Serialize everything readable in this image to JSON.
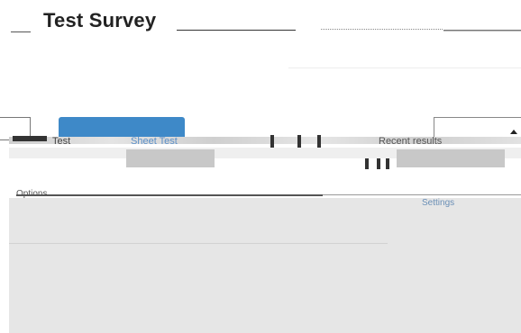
{
  "survey": {
    "title": "Test Survey"
  },
  "tabs": {
    "items": [
      {
        "label": "Test"
      },
      {
        "label": "Sheet Test"
      },
      {
        "label": "Recent results"
      }
    ]
  },
  "content": {
    "left_label": "Options",
    "right_label": "Settings"
  },
  "colors": {
    "accent": "#3e89c8",
    "panel": "#e6e6e6"
  },
  "icons": {
    "tab_caret": "caret-up-icon"
  }
}
